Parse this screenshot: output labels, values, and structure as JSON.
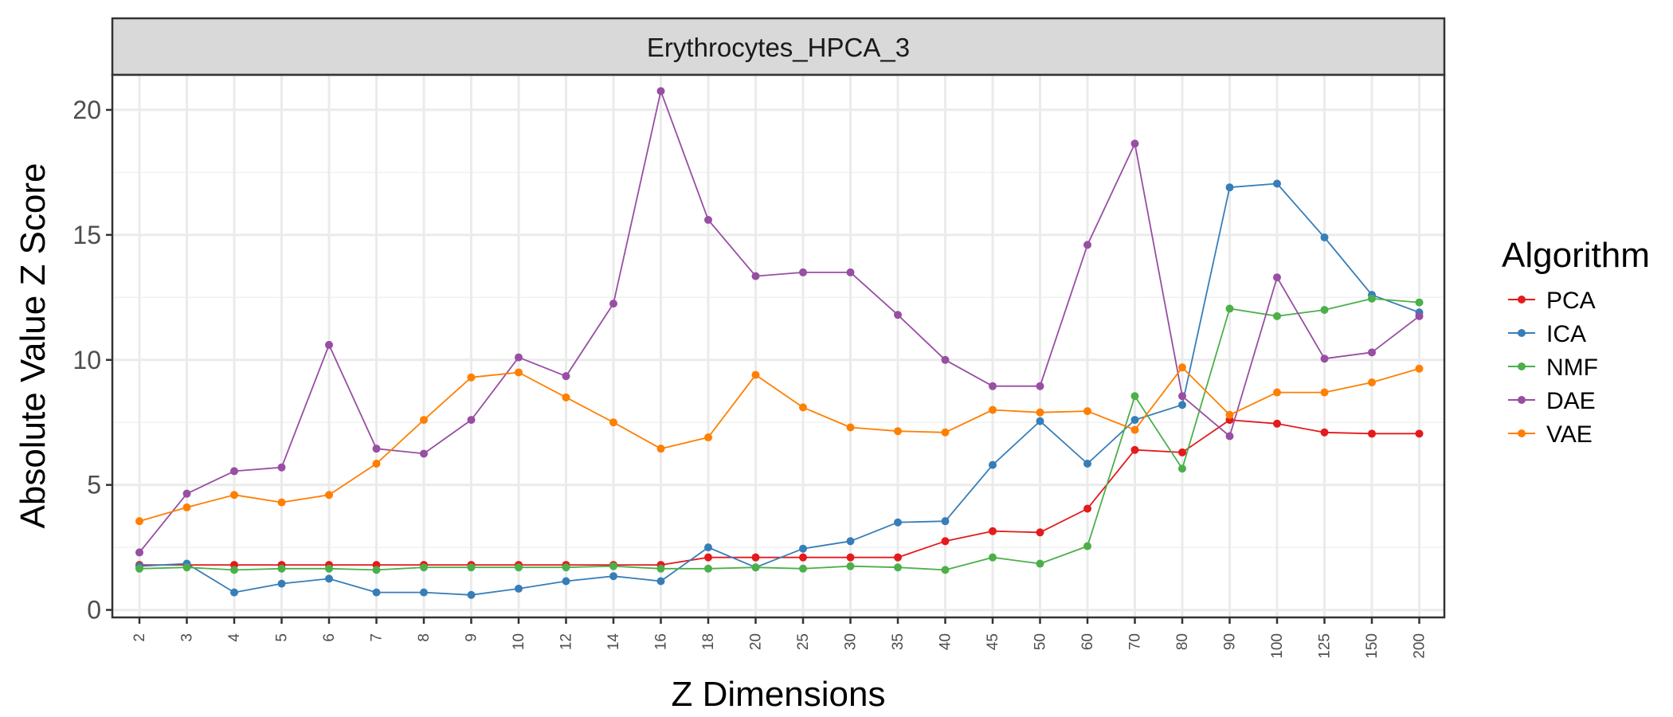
{
  "chart_data": {
    "type": "line",
    "facet_title": "Erythrocytes_HPCA_3",
    "xlabel": "Z Dimensions",
    "ylabel": "Absolute Value Z Score",
    "categories": [
      "2",
      "3",
      "4",
      "5",
      "6",
      "7",
      "8",
      "9",
      "10",
      "12",
      "14",
      "16",
      "18",
      "20",
      "25",
      "30",
      "35",
      "40",
      "45",
      "50",
      "60",
      "70",
      "80",
      "90",
      "100",
      "125",
      "150",
      "200"
    ],
    "ylim": [
      -0.3,
      21.4
    ],
    "yticks": [
      0,
      5,
      10,
      15,
      20
    ],
    "grid": true,
    "legend": {
      "title": "Algorithm",
      "position": "right"
    },
    "series": [
      {
        "name": "PCA",
        "color": "#e41a1c",
        "values": [
          1.8,
          1.8,
          1.8,
          1.8,
          1.8,
          1.8,
          1.8,
          1.8,
          1.8,
          1.8,
          1.8,
          1.8,
          2.1,
          2.1,
          2.1,
          2.1,
          2.1,
          2.75,
          3.15,
          3.1,
          4.05,
          6.4,
          6.3,
          7.6,
          7.45,
          7.1,
          7.05,
          7.05
        ]
      },
      {
        "name": "ICA",
        "color": "#377eb8",
        "values": [
          1.75,
          1.85,
          0.7,
          1.05,
          1.25,
          0.7,
          0.7,
          0.6,
          0.85,
          1.15,
          1.35,
          1.15,
          2.5,
          1.7,
          2.45,
          2.75,
          3.5,
          3.55,
          5.8,
          7.55,
          5.85,
          7.6,
          8.2,
          16.9,
          17.05,
          14.9,
          12.6,
          11.9
        ]
      },
      {
        "name": "NMF",
        "color": "#4daf4a",
        "values": [
          1.65,
          1.7,
          1.6,
          1.65,
          1.65,
          1.6,
          1.7,
          1.7,
          1.7,
          1.7,
          1.75,
          1.65,
          1.65,
          1.7,
          1.65,
          1.75,
          1.7,
          1.6,
          2.1,
          1.85,
          2.55,
          8.55,
          5.65,
          12.05,
          11.75,
          12.0,
          12.45,
          12.3
        ]
      },
      {
        "name": "DAE",
        "color": "#984ea3",
        "values": [
          2.3,
          4.65,
          5.55,
          5.7,
          10.6,
          6.45,
          6.25,
          7.6,
          10.1,
          9.35,
          12.25,
          20.75,
          15.6,
          13.35,
          13.5,
          13.5,
          11.8,
          10.0,
          8.95,
          8.95,
          14.6,
          18.65,
          8.55,
          6.95,
          13.3,
          10.05,
          10.3,
          11.75
        ]
      },
      {
        "name": "VAE",
        "color": "#ff7f00",
        "values": [
          3.55,
          4.1,
          4.6,
          4.3,
          4.6,
          5.85,
          7.6,
          9.3,
          9.5,
          8.5,
          7.5,
          6.45,
          6.9,
          9.4,
          8.1,
          7.3,
          7.15,
          7.1,
          8.0,
          7.9,
          7.95,
          7.2,
          9.7,
          7.8,
          8.7,
          8.7,
          9.1,
          9.65
        ]
      }
    ]
  }
}
